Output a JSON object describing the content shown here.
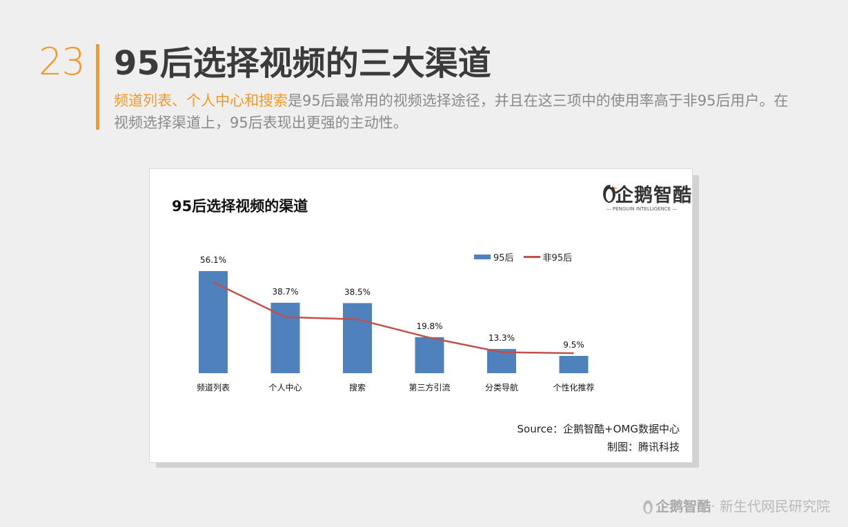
{
  "slide": {
    "number": "23",
    "title": "95后选择视频的三大渠道",
    "subtitle_highlight": "频道列表、个人中心和搜索",
    "subtitle_rest": "是95后最常用的视频选择途径，并且在这三项中的使用率高于非95后用户。在视频选择渠道上，95后表现出更强的主动性。"
  },
  "logo": {
    "text": "企鹅智酷",
    "sub": "— PENGUIN INTELLIGENCE —",
    "icon": "penguin-icon"
  },
  "chart_data": {
    "type": "bar",
    "title": "95后选择视频的渠道",
    "categories": [
      "频道列表",
      "个人中心",
      "搜索",
      "第三方引流",
      "分类导航",
      "个性化推荐"
    ],
    "series": [
      {
        "name": "95后",
        "type": "bar",
        "color": "#4f81bd",
        "values": [
          56.1,
          38.7,
          38.5,
          19.8,
          13.3,
          9.5
        ],
        "labels": [
          "56.1%",
          "38.7%",
          "38.5%",
          "19.8%",
          "13.3%",
          "9.5%"
        ]
      },
      {
        "name": "非95后",
        "type": "line",
        "color": "#c0504d",
        "values": [
          50.0,
          30.8,
          29.6,
          19.5,
          11.5,
          11.0
        ]
      }
    ],
    "ylim": [
      0,
      60
    ],
    "grid": false,
    "legend": "top-right"
  },
  "source": {
    "line1": "Source：企鹅智酷+OMG数据中心",
    "line2": "制图：腾讯科技"
  },
  "footer": {
    "brand": "企鹅智酷",
    "text": "· 新生代网民研究院"
  }
}
